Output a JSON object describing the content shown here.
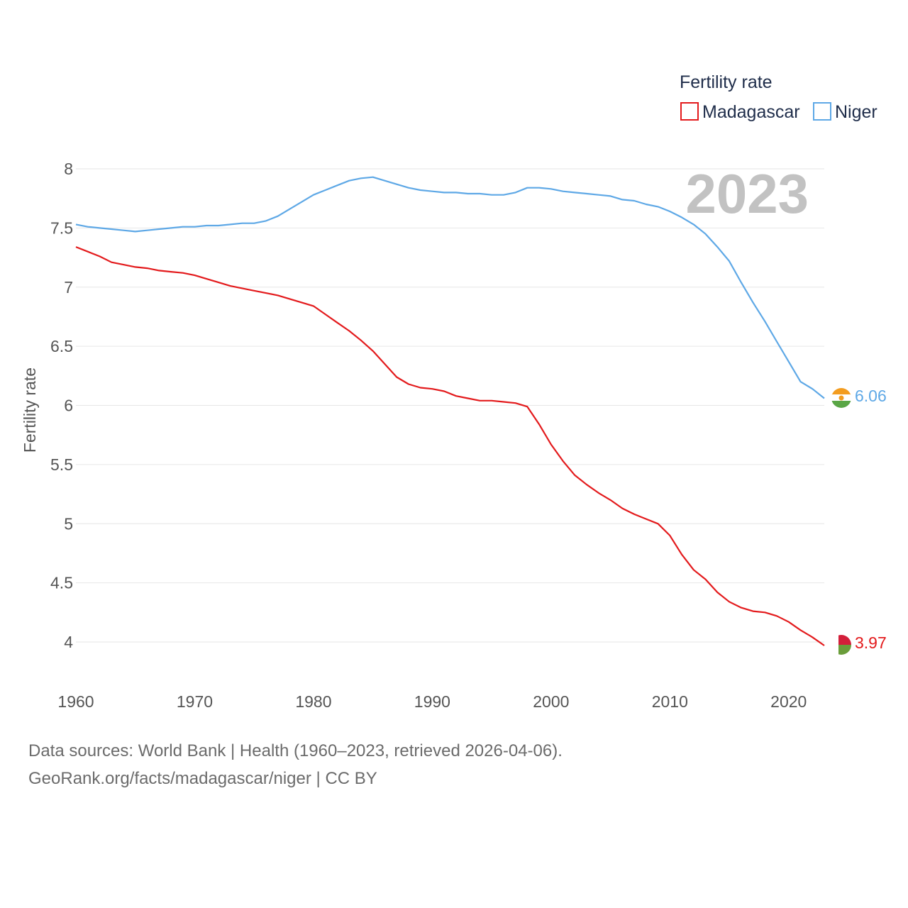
{
  "chart_data": {
    "type": "line",
    "title": "",
    "legend_title": "Fertility rate",
    "ylabel": "Fertility rate",
    "xlabel": "",
    "ylim": [
      3.7,
      8.2
    ],
    "xlim": [
      1960,
      2023
    ],
    "x_ticks": [
      1960,
      1970,
      1980,
      1990,
      2000,
      2010,
      2020
    ],
    "x_tick_labels": [
      "1960",
      "1970",
      "1980",
      "1990",
      "2000",
      "2010",
      "2020"
    ],
    "y_ticks": [
      4,
      4.5,
      5,
      5.5,
      6,
      6.5,
      7,
      7.5,
      8
    ],
    "y_tick_labels": [
      "4",
      "4.5",
      "5",
      "5.5",
      "6",
      "6.5",
      "7",
      "7.5",
      "8"
    ],
    "year_label": "2023",
    "legend_position": "top-right",
    "grid": true,
    "x": [
      1960,
      1961,
      1962,
      1963,
      1964,
      1965,
      1966,
      1967,
      1968,
      1969,
      1970,
      1971,
      1972,
      1973,
      1974,
      1975,
      1976,
      1977,
      1978,
      1979,
      1980,
      1981,
      1982,
      1983,
      1984,
      1985,
      1986,
      1987,
      1988,
      1989,
      1990,
      1991,
      1992,
      1993,
      1994,
      1995,
      1996,
      1997,
      1998,
      1999,
      2000,
      2001,
      2002,
      2003,
      2004,
      2005,
      2006,
      2007,
      2008,
      2009,
      2010,
      2011,
      2012,
      2013,
      2014,
      2015,
      2016,
      2017,
      2018,
      2019,
      2020,
      2021,
      2022,
      2023
    ],
    "series": [
      {
        "name": "Madagascar",
        "color": "#e31a1c",
        "end_label": "3.97",
        "values": [
          7.34,
          7.3,
          7.26,
          7.21,
          7.19,
          7.17,
          7.16,
          7.14,
          7.13,
          7.12,
          7.1,
          7.07,
          7.04,
          7.01,
          6.99,
          6.97,
          6.95,
          6.93,
          6.9,
          6.87,
          6.84,
          6.77,
          6.7,
          6.63,
          6.55,
          6.46,
          6.35,
          6.24,
          6.18,
          6.15,
          6.14,
          6.12,
          6.08,
          6.06,
          6.04,
          6.04,
          6.03,
          6.02,
          5.99,
          5.84,
          5.67,
          5.53,
          5.41,
          5.33,
          5.26,
          5.2,
          5.13,
          5.08,
          5.04,
          5.0,
          4.9,
          4.74,
          4.61,
          4.53,
          4.42,
          4.34,
          4.29,
          4.26,
          4.25,
          4.22,
          4.17,
          4.1,
          4.04,
          3.97
        ]
      },
      {
        "name": "Niger",
        "color": "#5ea8e6",
        "end_label": "6.06",
        "values": [
          7.53,
          7.51,
          7.5,
          7.49,
          7.48,
          7.47,
          7.48,
          7.49,
          7.5,
          7.51,
          7.51,
          7.52,
          7.52,
          7.53,
          7.54,
          7.54,
          7.56,
          7.6,
          7.66,
          7.72,
          7.78,
          7.82,
          7.86,
          7.9,
          7.92,
          7.93,
          7.9,
          7.87,
          7.84,
          7.82,
          7.81,
          7.8,
          7.8,
          7.79,
          7.79,
          7.78,
          7.78,
          7.8,
          7.84,
          7.84,
          7.83,
          7.81,
          7.8,
          7.79,
          7.78,
          7.77,
          7.74,
          7.73,
          7.7,
          7.68,
          7.64,
          7.59,
          7.53,
          7.45,
          7.34,
          7.22,
          7.04,
          6.87,
          6.71,
          6.54,
          6.37,
          6.2,
          6.14,
          6.06
        ]
      }
    ]
  },
  "footer": {
    "line1": "Data sources: World Bank | Health (1960–2023, retrieved 2026-04-06).",
    "line2": "GeoRank.org/facts/madagascar/niger | CC BY"
  }
}
